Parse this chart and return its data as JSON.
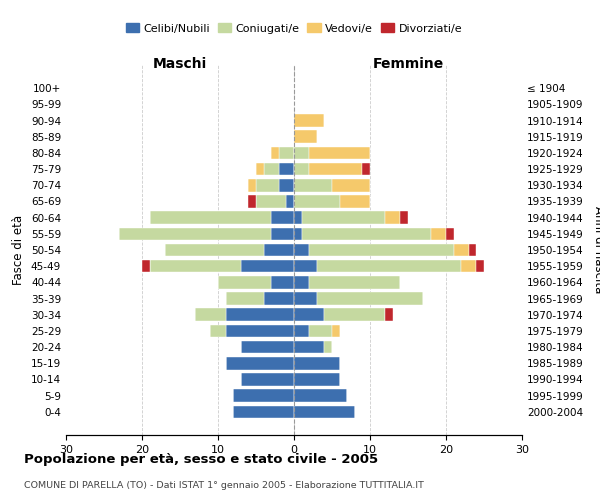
{
  "age_groups": [
    "0-4",
    "5-9",
    "10-14",
    "15-19",
    "20-24",
    "25-29",
    "30-34",
    "35-39",
    "40-44",
    "45-49",
    "50-54",
    "55-59",
    "60-64",
    "65-69",
    "70-74",
    "75-79",
    "80-84",
    "85-89",
    "90-94",
    "95-99",
    "100+"
  ],
  "birth_years": [
    "2000-2004",
    "1995-1999",
    "1990-1994",
    "1985-1989",
    "1980-1984",
    "1975-1979",
    "1970-1974",
    "1965-1969",
    "1960-1964",
    "1955-1959",
    "1950-1954",
    "1945-1949",
    "1940-1944",
    "1935-1939",
    "1930-1934",
    "1925-1929",
    "1920-1924",
    "1915-1919",
    "1910-1914",
    "1905-1909",
    "≤ 1904"
  ],
  "maschi": {
    "celibi": [
      8,
      8,
      7,
      9,
      7,
      9,
      9,
      4,
      3,
      7,
      4,
      3,
      3,
      1,
      2,
      2,
      0,
      0,
      0,
      0,
      0
    ],
    "coniugati": [
      0,
      0,
      0,
      0,
      0,
      2,
      4,
      5,
      7,
      12,
      13,
      20,
      16,
      4,
      3,
      2,
      2,
      0,
      0,
      0,
      0
    ],
    "vedovi": [
      0,
      0,
      0,
      0,
      0,
      0,
      0,
      0,
      0,
      0,
      0,
      0,
      0,
      0,
      1,
      1,
      1,
      0,
      0,
      0,
      0
    ],
    "divorziati": [
      0,
      0,
      0,
      0,
      0,
      0,
      0,
      0,
      0,
      1,
      0,
      0,
      0,
      1,
      0,
      0,
      0,
      0,
      0,
      0,
      0
    ]
  },
  "femmine": {
    "nubili": [
      8,
      7,
      6,
      6,
      4,
      2,
      4,
      3,
      2,
      3,
      2,
      1,
      1,
      0,
      0,
      0,
      0,
      0,
      0,
      0,
      0
    ],
    "coniugate": [
      0,
      0,
      0,
      0,
      1,
      3,
      8,
      14,
      12,
      19,
      19,
      17,
      11,
      6,
      5,
      2,
      2,
      0,
      0,
      0,
      0
    ],
    "vedove": [
      0,
      0,
      0,
      0,
      0,
      1,
      0,
      0,
      0,
      2,
      2,
      2,
      2,
      4,
      5,
      7,
      8,
      3,
      4,
      0,
      0
    ],
    "divorziate": [
      0,
      0,
      0,
      0,
      0,
      0,
      1,
      0,
      0,
      1,
      1,
      1,
      1,
      0,
      0,
      1,
      0,
      0,
      0,
      0,
      0
    ]
  },
  "colors": {
    "celibi_nubili": "#3d6faf",
    "coniugati_e": "#c5d9a0",
    "vedovi_e": "#f5c96b",
    "divorziati_e": "#c0272d"
  },
  "xlim": 30,
  "title": "Popolazione per età, sesso e stato civile - 2005",
  "subtitle": "COMUNE DI PARELLA (TO) - Dati ISTAT 1° gennaio 2005 - Elaborazione TUTTITALIA.IT",
  "ylabel_left": "Fasce di età",
  "ylabel_right": "Anni di nascita",
  "xlabel_maschi": "Maschi",
  "xlabel_femmine": "Femmine",
  "legend_labels": [
    "Celibi/Nubili",
    "Coniugati/e",
    "Vedovi/e",
    "Divorziati/e"
  ],
  "bg_color": "#ffffff",
  "grid_color": "#cccccc"
}
